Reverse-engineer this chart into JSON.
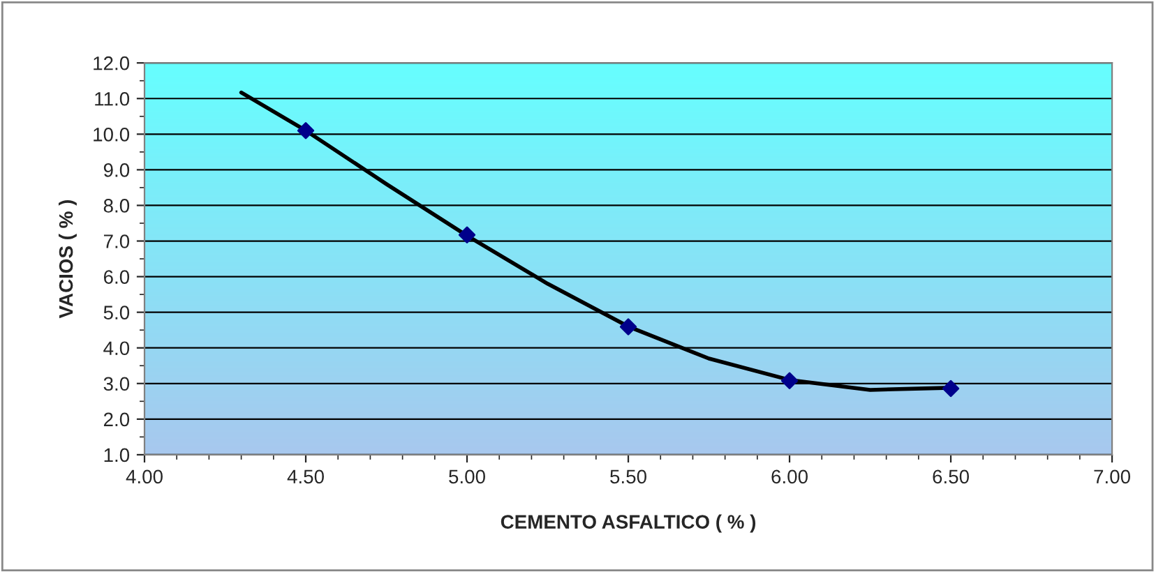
{
  "chart_data": {
    "type": "scatter",
    "xlabel": "CEMENTO ASFALTICO ( % )",
    "ylabel": "VACIOS ( % )",
    "xlim": [
      4.0,
      7.0
    ],
    "ylim": [
      1.0,
      12.0
    ],
    "xticks": [
      {
        "value": 4.0,
        "label": "4.00"
      },
      {
        "value": 4.5,
        "label": "4.50"
      },
      {
        "value": 5.0,
        "label": "5.00"
      },
      {
        "value": 5.5,
        "label": "5.50"
      },
      {
        "value": 6.0,
        "label": "6.00"
      },
      {
        "value": 6.5,
        "label": "6.50"
      },
      {
        "value": 7.0,
        "label": "7.00"
      }
    ],
    "yticks": [
      {
        "value": 1,
        "label": "1.0"
      },
      {
        "value": 2,
        "label": "2.0"
      },
      {
        "value": 3,
        "label": "3.0"
      },
      {
        "value": 4,
        "label": "4.0"
      },
      {
        "value": 5,
        "label": "5.0"
      },
      {
        "value": 6,
        "label": "6.0"
      },
      {
        "value": 7,
        "label": "7.0"
      },
      {
        "value": 8,
        "label": "8.0"
      },
      {
        "value": 9,
        "label": "9.0"
      },
      {
        "value": 10,
        "label": "10.0"
      },
      {
        "value": 11,
        "label": "11.0"
      },
      {
        "value": 12,
        "label": "12.0"
      }
    ],
    "grid": "y",
    "legend": false,
    "series": [
      {
        "type": "line",
        "color": "#000000",
        "marker": "none",
        "line_style": "solid",
        "x": [
          4.3,
          4.5,
          4.75,
          5.0,
          5.25,
          5.5,
          5.75,
          6.0,
          6.25,
          6.5
        ],
        "values": [
          11.17,
          10.1,
          8.6,
          7.15,
          5.8,
          4.6,
          3.7,
          3.1,
          2.82,
          2.88
        ]
      },
      {
        "color": "#00008b",
        "marker": "diamond",
        "x": [
          4.5,
          5.0,
          5.5,
          6.0,
          6.5
        ],
        "values": [
          10.1,
          7.17,
          4.59,
          3.08,
          2.86
        ]
      }
    ]
  }
}
